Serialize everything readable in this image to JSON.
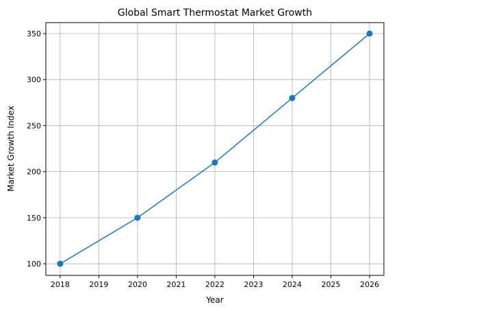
{
  "chart_data": {
    "type": "line",
    "title": "Global Smart Thermostat Market Growth",
    "xlabel": "Year",
    "ylabel": "Market Growth Index",
    "x": [
      2018,
      2020,
      2022,
      2024,
      2026
    ],
    "series": [
      {
        "name": "Market Growth Index",
        "values": [
          100,
          150,
          210,
          280,
          350
        ],
        "color": "#1f77b4",
        "marker": "circle"
      }
    ],
    "xticks": [
      "2018",
      "2019",
      "2020",
      "2021",
      "2022",
      "2023",
      "2024",
      "2025",
      "2026"
    ],
    "yticks": [
      "100",
      "150",
      "200",
      "250",
      "300",
      "350"
    ],
    "xlim": [
      2017.63,
      2026.37
    ],
    "ylim": [
      87.4,
      361.9
    ],
    "grid": true
  }
}
